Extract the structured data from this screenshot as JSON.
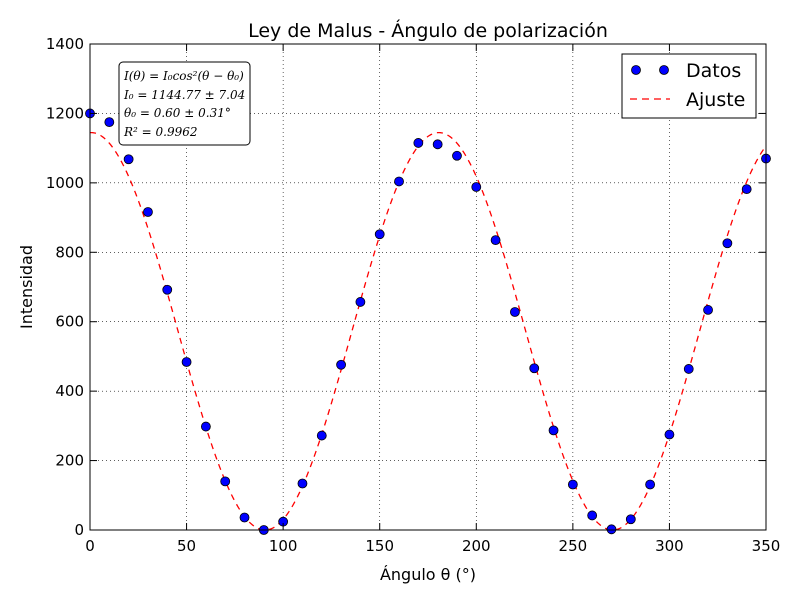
{
  "chart_data": {
    "type": "scatter",
    "title": "Ley de Malus - Ángulo de polarización",
    "xlabel": "Ángulo θ (°)",
    "ylabel": "Intensidad",
    "xlim": [
      0,
      350
    ],
    "ylim": [
      0,
      1400
    ],
    "xticks": [
      0,
      50,
      100,
      150,
      200,
      250,
      300,
      350
    ],
    "yticks": [
      0,
      200,
      400,
      600,
      800,
      1000,
      1200,
      1400
    ],
    "grid": true,
    "legend_position": "top-right",
    "series": [
      {
        "name": "Datos",
        "kind": "markers",
        "color": "#0000ff",
        "x": [
          0,
          10,
          20,
          30,
          40,
          50,
          60,
          70,
          80,
          90,
          100,
          110,
          120,
          130,
          140,
          150,
          160,
          170,
          180,
          190,
          200,
          210,
          220,
          230,
          240,
          250,
          260,
          270,
          280,
          290,
          300,
          310,
          320,
          330,
          340,
          350
        ],
        "y": [
          1200,
          1175,
          1068,
          916,
          692,
          484,
          298,
          140,
          36,
          0,
          24,
          134,
          272,
          476,
          657,
          852,
          1004,
          1115,
          1111,
          1078,
          988,
          835,
          628,
          466,
          287,
          131,
          42,
          2,
          31,
          131,
          275,
          464,
          634,
          826,
          982,
          1070
        ]
      },
      {
        "name": "Ajuste",
        "kind": "dashed-line",
        "color": "#ff0000",
        "model": {
          "I0": 1144.77,
          "theta0": 0.6
        },
        "x": [
          0,
          10,
          20,
          30,
          40,
          50,
          60,
          70,
          80,
          90,
          100,
          110,
          120,
          130,
          140,
          150,
          160,
          170,
          180,
          190,
          200,
          210,
          220,
          230,
          240,
          250,
          260,
          270,
          280,
          290,
          300,
          310,
          320,
          330,
          340,
          350
        ],
        "y": [
          1144.6,
          1113.7,
          1017.6,
          872.5,
          684.8,
          464.8,
          291.8,
          138.2,
          36.0,
          0.1,
          31.0,
          130.4,
          287.5,
          475.9,
          664.9,
          856.8,
          1004.9,
          1100.8,
          1144.6,
          1126.3,
          1026.0,
          882.7,
          694.1,
          486.6,
          300.4,
          145.7,
          40.1,
          0.1,
          27.9,
          123.2,
          275.1,
          467.7,
          670.9,
          862.9,
          1008.7,
          1109.5
        ]
      }
    ],
    "annotation": {
      "lines": [
        "I(θ) = I₀cos²(θ − θ₀)",
        "I₀ = 1144.77 ± 7.04",
        "θ₀ = 0.60 ± 0.31°",
        "R² = 0.9962"
      ]
    }
  }
}
